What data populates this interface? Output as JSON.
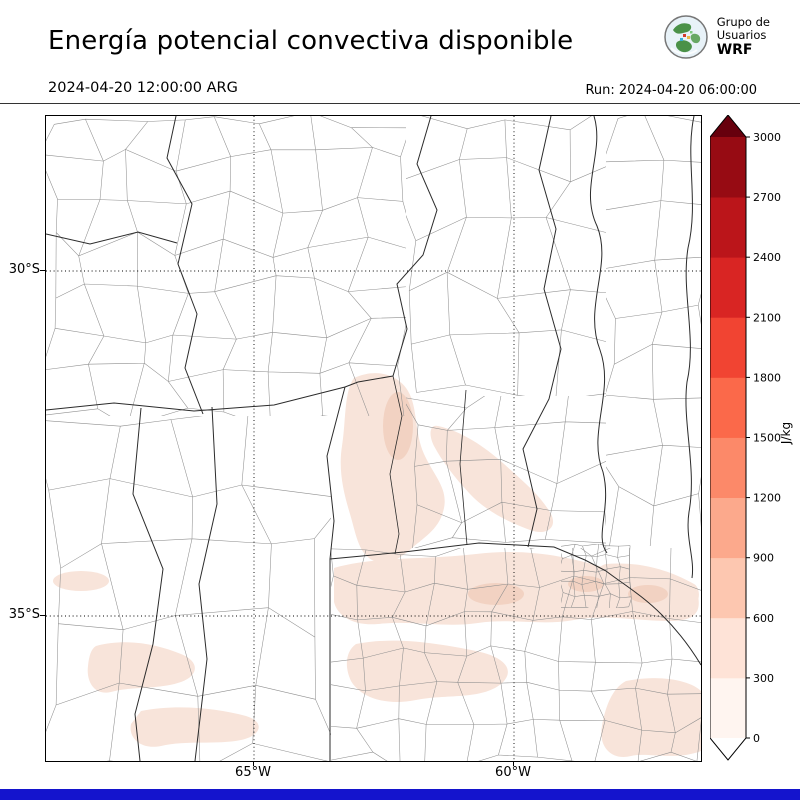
{
  "header": {
    "title": "Energía potencial convectiva disponible",
    "logo": {
      "line1": "Grupo de",
      "line2": "Usuarios",
      "line3": "WRF"
    }
  },
  "subheader": {
    "valid_time": "2024-04-20 12:00:00 ARG",
    "run": "Run: 2024-04-20 06:00:00"
  },
  "axes": {
    "lat": [
      "30°S",
      "35°S"
    ],
    "lon": [
      "65°W",
      "60°W"
    ]
  },
  "chart_data": {
    "type": "heatmap",
    "title": "Energía potencial convectiva disponible",
    "valid_time": "2024-04-20 12:00:00 ARG",
    "run_time": "2024-04-20 06:00:00",
    "unit": "J/kg",
    "colorbar_ticks": [
      0,
      300,
      600,
      900,
      1200,
      1500,
      1800,
      2100,
      2400,
      2700,
      3000
    ],
    "colorbar_colors_bottom_to_top": [
      "#fff5f0",
      "#fee3d7",
      "#fdc7b0",
      "#fca98c",
      "#fc8969",
      "#fb694a",
      "#f14432",
      "#d92523",
      "#bb151a",
      "#970b13"
    ],
    "colorbar_extend_over": "#67000d",
    "colorbar_extend_under": "#ffffff",
    "lat_gridlines": [
      "30°S",
      "35°S"
    ],
    "lon_gridlines": [
      "65°W",
      "60°W"
    ],
    "shading_note": "Light shading (0-300 J/kg) over central Argentina, southern Santa Fe and Buenos Aires region; rest of domain near 0"
  },
  "colorbar": {
    "unit": "J/kg"
  },
  "footer": {
    "bar_color": "#1414cd"
  }
}
